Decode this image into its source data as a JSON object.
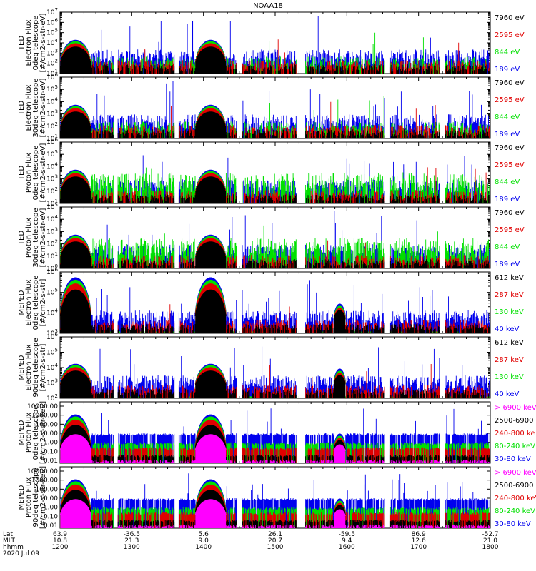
{
  "title": "NOAA18",
  "colors": {
    "black": "#000000",
    "red": "#e00000",
    "green": "#00e000",
    "blue": "#0000ee",
    "magenta": "#ff00ff"
  },
  "panels": [
    {
      "ylabel": [
        "TED",
        "Electron Flux",
        "0deg telescope",
        "[#/cm2-s-str-eV]"
      ],
      "scale": "log",
      "ymin_exp": 1,
      "ymax_exp": 7,
      "legend": [
        {
          "text": "7960 eV",
          "color": "black"
        },
        {
          "text": "2595 eV",
          "color": "red"
        },
        {
          "text": "844 eV",
          "color": "green"
        },
        {
          "text": "189 eV",
          "color": "blue"
        }
      ],
      "kind": "ted-e"
    },
    {
      "ylabel": [
        "TED",
        "Electron Flux",
        "30deg telescope",
        "[#/cm2-s-str-eV]"
      ],
      "scale": "log",
      "ymin_exp": 1,
      "ymax_exp": 6,
      "legend": [
        {
          "text": "7960 eV",
          "color": "black"
        },
        {
          "text": "2595 eV",
          "color": "red"
        },
        {
          "text": "844 eV",
          "color": "green"
        },
        {
          "text": "189 eV",
          "color": "blue"
        }
      ],
      "kind": "ted-e"
    },
    {
      "ylabel": [
        "TED",
        "Proton Flux",
        "0deg telescope",
        "[#/cm2-s-str-eV]"
      ],
      "scale": "log",
      "ymin_exp": 1,
      "ymax_exp": 6,
      "legend": [
        {
          "text": "7960 eV",
          "color": "black"
        },
        {
          "text": "2595 eV",
          "color": "red"
        },
        {
          "text": "844 eV",
          "color": "green"
        },
        {
          "text": "189 eV",
          "color": "blue"
        }
      ],
      "kind": "ted-p"
    },
    {
      "ylabel": [
        "TED",
        "Proton Flux",
        "30deg telescope",
        "[#/cm2-s-str-eV]"
      ],
      "scale": "log",
      "ymin_exp": 0,
      "ymax_exp": 5,
      "legend": [
        {
          "text": "7960 eV",
          "color": "black"
        },
        {
          "text": "2595 eV",
          "color": "red"
        },
        {
          "text": "844 eV",
          "color": "green"
        },
        {
          "text": "189 eV",
          "color": "blue"
        }
      ],
      "kind": "ted-p30"
    },
    {
      "ylabel": [
        "MEPED",
        "Electron Flux",
        "0deg telescope",
        "[#/cm2-s-str]"
      ],
      "scale": "log",
      "ymin_exp": 3,
      "ymax_exp": 6,
      "legend": [
        {
          "text": "612 keV",
          "color": "black"
        },
        {
          "text": "287 keV",
          "color": "red"
        },
        {
          "text": "130 keV",
          "color": "green"
        },
        {
          "text": "40 keV",
          "color": "blue"
        }
      ],
      "kind": "meped-e0"
    },
    {
      "ylabel": [
        "MEPED",
        "Electron Flux",
        "90deg telescope",
        "[#/cm2-s-str]"
      ],
      "scale": "log",
      "ymin_exp": 2,
      "ymax_exp": 6,
      "legend": [
        {
          "text": "612 keV",
          "color": "black"
        },
        {
          "text": "287 keV",
          "color": "red"
        },
        {
          "text": "130 keV",
          "color": "green"
        },
        {
          "text": "40 keV",
          "color": "blue"
        }
      ],
      "kind": "meped-e90"
    },
    {
      "ylabel": [
        "MEPED",
        "Proton Flux",
        "0deg telescope",
        "[#/cm2-s-str-keV]"
      ],
      "scale": "lin-labels",
      "ticks": [
        "10000.00",
        "1000.00",
        "100.00",
        "10.00",
        "1.00",
        "0.10",
        "0.01"
      ],
      "legend": [
        {
          "text": "> 6900 keV",
          "color": "magenta"
        },
        {
          "text": "2500-6900",
          "color": "black"
        },
        {
          "text": "240-800 ke",
          "color": "red"
        },
        {
          "text": "80-240 keV",
          "color": "green"
        },
        {
          "text": "30-80 keV",
          "color": "blue"
        }
      ],
      "kind": "meped-p"
    },
    {
      "ylabel": [
        "MEPED",
        "Proton Flux",
        "90deg telescope",
        "[#/cm2-s-str-keV]"
      ],
      "scale": "lin-labels",
      "ticks": [
        "10000.00",
        "1000.00",
        "100.00",
        "10.00",
        "1.00",
        "0.10",
        "0.01"
      ],
      "legend": [
        {
          "text": "> 6900 keV",
          "color": "magenta"
        },
        {
          "text": "2500-6900",
          "color": "black"
        },
        {
          "text": "240-800 keV",
          "color": "red"
        },
        {
          "text": "80-240 keV",
          "color": "green"
        },
        {
          "text": "30-80 keV",
          "color": "blue"
        }
      ],
      "kind": "meped-p"
    }
  ],
  "xaxis": {
    "row_labels": [
      "Lat",
      "MLT",
      "hhmm"
    ],
    "date": "2020 Jul 09",
    "ticks": [
      {
        "lat": "63.9",
        "mlt": "10.8",
        "hhmm": "1200"
      },
      {
        "lat": "-36.5",
        "mlt": "21.3",
        "hhmm": "1300"
      },
      {
        "lat": "5.6",
        "mlt": "9.0",
        "hhmm": "1400"
      },
      {
        "lat": "26.1",
        "mlt": "20.7",
        "hhmm": "1500"
      },
      {
        "lat": "-59.5",
        "mlt": "9.4",
        "hhmm": "1600"
      },
      {
        "lat": "86.9",
        "mlt": "12.6",
        "hhmm": "1700"
      },
      {
        "lat": "-52.7",
        "mlt": "21.0",
        "hhmm": "1800"
      }
    ]
  },
  "chart_data": {
    "type": "line",
    "title": "NOAA18",
    "x_ticks": [
      "1200",
      "1300",
      "1400",
      "1500",
      "1600",
      "1700",
      "1800"
    ],
    "x_range_hhmm": [
      "1200",
      "1800"
    ],
    "radiation_belt_passes_hhmm": [
      "1213",
      "1300",
      "1406",
      "1554",
      "1758"
    ],
    "series_note_values": [
      {
        "panel": 0,
        "peak_log10": 3.5
      },
      {
        "panel": 4,
        "peak_log10": 5.7
      },
      {
        "panel": 6,
        "peak_value": 1000
      }
    ]
  }
}
